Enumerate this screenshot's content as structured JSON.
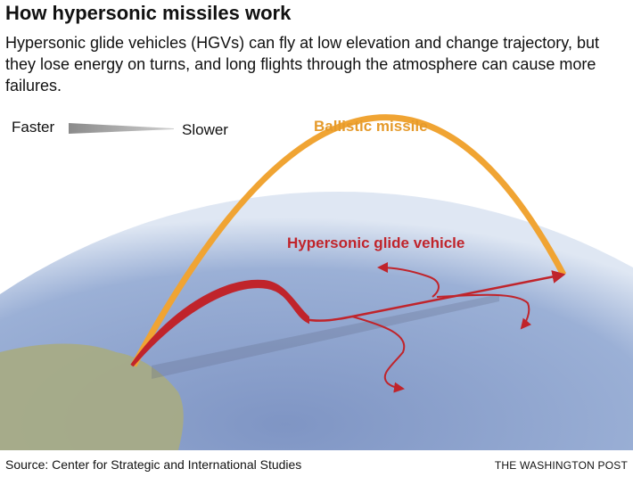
{
  "title": "How hypersonic missiles work",
  "subtitle": "Hypersonic glide vehicles (HGVs) can fly at low elevation and change trajectory, but they lose energy on turns, and long flights through the atmosphere can cause more failures.",
  "legend": {
    "faster": "Faster",
    "slower": "Slower"
  },
  "labels": {
    "ballistic": "Ballistic missile",
    "hgv": "Hypersonic glide vehicle"
  },
  "colors": {
    "ballistic": "#f0a433",
    "hgv": "#c0242b",
    "ocean": "#8fa6cf",
    "land": "#a9b08a"
  },
  "footer": {
    "source": "Source:  Center for Strategic and International Studies",
    "credit": "THE WASHINGTON POST"
  }
}
